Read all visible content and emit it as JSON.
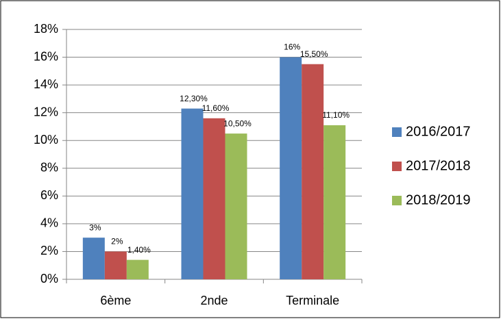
{
  "chart_data": {
    "type": "bar",
    "categories": [
      "6ème",
      "2nde",
      "Terminale"
    ],
    "series": [
      {
        "name": "2016/2017",
        "color": "#4f81bd",
        "values": [
          3,
          12.3,
          16
        ],
        "value_labels": [
          "3%",
          "12,30%",
          "16%"
        ]
      },
      {
        "name": "2017/2018",
        "color": "#c0504d",
        "values": [
          2,
          11.6,
          15.5
        ],
        "value_labels": [
          "2%",
          "11,60%",
          "15,50%"
        ]
      },
      {
        "name": "2018/2019",
        "color": "#9bbb59",
        "values": [
          1.4,
          10.5,
          11.1
        ],
        "value_labels": [
          "1,40%",
          "10,50%",
          "11,10%"
        ]
      }
    ],
    "ylim": [
      0,
      18
    ],
    "yticks": [
      {
        "value": 0,
        "label": "0%"
      },
      {
        "value": 2,
        "label": "2%"
      },
      {
        "value": 4,
        "label": "4%"
      },
      {
        "value": 6,
        "label": "6%"
      },
      {
        "value": 8,
        "label": "8%"
      },
      {
        "value": 10,
        "label": "10%"
      },
      {
        "value": 12,
        "label": "12%"
      },
      {
        "value": 14,
        "label": "14%"
      },
      {
        "value": 16,
        "label": "16%"
      },
      {
        "value": 18,
        "label": "18%"
      }
    ],
    "grid": true,
    "legend": "right"
  }
}
